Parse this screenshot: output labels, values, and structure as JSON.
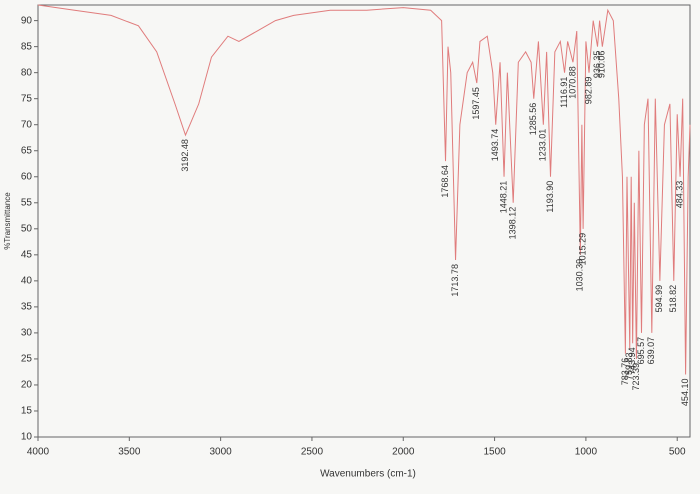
{
  "chart_data": {
    "type": "line",
    "xlabel": "Wavenumbers (cm-1)",
    "ylabel": "%Transmittance",
    "xlim": [
      4000,
      430
    ],
    "ylim": [
      10,
      93
    ],
    "xticks": [
      4000,
      3500,
      3000,
      2500,
      2000,
      1500,
      1000,
      500
    ],
    "yticks": [
      10,
      15,
      20,
      25,
      30,
      35,
      40,
      45,
      50,
      55,
      60,
      65,
      70,
      75,
      80,
      85,
      90
    ],
    "grid": false,
    "x": [
      4000,
      3800,
      3600,
      3450,
      3350,
      3250,
      3192.48,
      3120,
      3050,
      2960,
      2900,
      2800,
      2700,
      2600,
      2400,
      2200,
      2000,
      1850,
      1790,
      1768.64,
      1755,
      1740,
      1713.78,
      1690,
      1650,
      1620,
      1597.45,
      1580,
      1540,
      1510,
      1493.74,
      1470,
      1448.21,
      1430,
      1398.12,
      1370,
      1330,
      1300,
      1285.56,
      1260,
      1233.01,
      1215,
      1193.9,
      1170,
      1140,
      1116.91,
      1100,
      1070.88,
      1050,
      1030.39,
      1022,
      1015.29,
      1000,
      982.89,
      960,
      936.35,
      925,
      910.06,
      880,
      850,
      820,
      800,
      783.76,
      775,
      759.83,
      752,
      743.94,
      735,
      723.39,
      710,
      695.57,
      680,
      660,
      639.07,
      620,
      594.99,
      570,
      540,
      518.82,
      500,
      484.33,
      470,
      454.1,
      440,
      430
    ],
    "series": [
      {
        "color": "#e07c7c",
        "values": [
          93,
          92,
          91,
          89,
          84,
          74,
          68,
          74,
          83,
          87,
          86,
          88,
          90,
          91,
          92,
          92,
          92.5,
          92,
          90,
          63,
          85,
          80,
          44,
          70,
          80,
          82,
          78,
          86,
          87,
          80,
          70,
          82,
          60,
          80,
          55,
          82,
          84,
          82,
          75,
          86,
          70,
          84,
          60,
          84,
          86,
          80,
          86,
          82,
          88,
          45,
          70,
          50,
          86,
          80,
          90,
          85,
          90,
          85,
          92,
          90,
          75,
          60,
          26,
          60,
          27,
          60,
          28,
          55,
          25,
          65,
          30,
          70,
          75,
          30,
          75,
          40,
          70,
          74,
          40,
          72,
          60,
          75,
          22,
          60,
          70
        ]
      }
    ],
    "peaks": {
      "x": [
        3192.48,
        1768.64,
        1713.78,
        1597.45,
        1493.74,
        1448.21,
        1398.12,
        1285.56,
        1233.01,
        1193.9,
        1116.91,
        1070.88,
        1030.39,
        1015.29,
        982.89,
        936.35,
        910.06,
        783.76,
        759.83,
        743.94,
        723.39,
        695.57,
        639.07,
        594.99,
        518.82,
        484.33,
        454.1
      ],
      "y": [
        68,
        63,
        44,
        78,
        70,
        60,
        55,
        75,
        70,
        60,
        80,
        82,
        45,
        50,
        80,
        85,
        85,
        26,
        27,
        28,
        25,
        30,
        30,
        40,
        40,
        60,
        22
      ],
      "labels": [
        "3192.48",
        "1768.64",
        "1713.78",
        "1597.45",
        "1493.74",
        "1448.21",
        "1398.12",
        "1285.56",
        "1233.01",
        "1193.90",
        "1116.91",
        "1070.88",
        "1030.39",
        "1015.29",
        "982.89",
        "936.35",
        "910.06",
        "783.76",
        "759.83",
        "743.94",
        "723.39",
        "695.57",
        "639.07",
        "594.99",
        "518.82",
        "484.33",
        "454.10"
      ]
    }
  }
}
